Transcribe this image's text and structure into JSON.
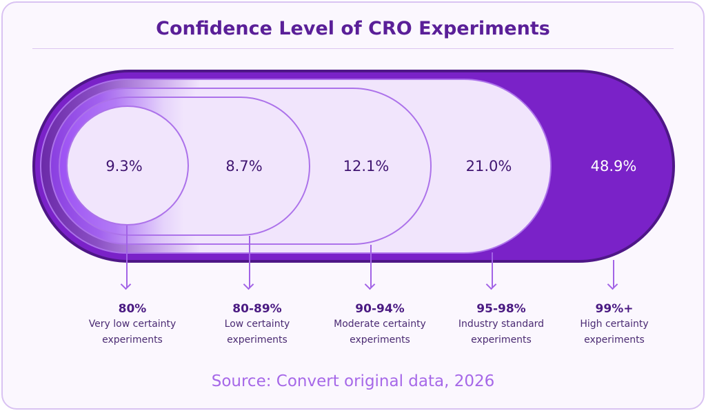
{
  "title": "Confidence Level of CRO Experiments",
  "source": "Source: Convert original data, 2026",
  "colors": {
    "title": "#5a1f98",
    "accent": "#7a22c8",
    "dark": "#4e1787",
    "source": "#a668e8"
  },
  "chart_data": {
    "type": "nested-pill",
    "title": "Confidence Level of CRO Experiments",
    "categories": [
      "80%",
      "80-89%",
      "90-94%",
      "95-98%",
      "99%+"
    ],
    "descriptions": [
      [
        "Very low certainty",
        "experiments"
      ],
      [
        "Low certainty",
        "experiments"
      ],
      [
        "Moderate certainty",
        "experiments"
      ],
      [
        "Industry standard",
        "experiments"
      ],
      [
        "High certainty",
        "experiments"
      ]
    ],
    "values": [
      9.3,
      8.7,
      12.1,
      21.0,
      48.9
    ],
    "labels": [
      "9.3%",
      "8.7%",
      "12.1%",
      "21.0%",
      "48.9%"
    ]
  }
}
